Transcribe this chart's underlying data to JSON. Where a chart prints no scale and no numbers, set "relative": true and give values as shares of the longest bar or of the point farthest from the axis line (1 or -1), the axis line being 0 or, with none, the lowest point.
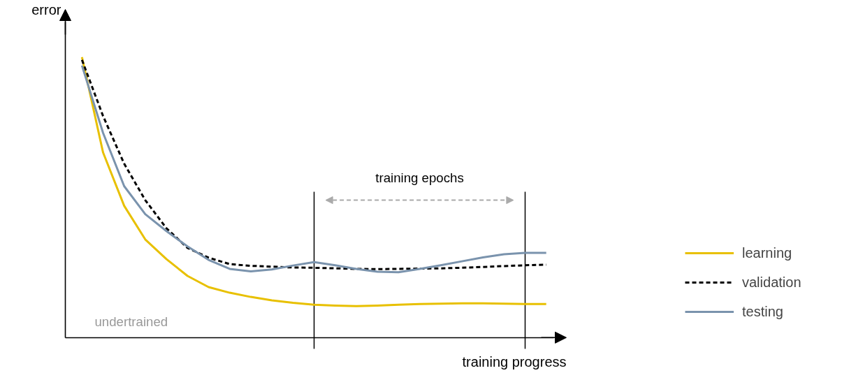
{
  "chart_data": {
    "type": "line",
    "relative": true,
    "xlabel": "training progress",
    "ylabel": "error",
    "tick_labels": false,
    "grid": false,
    "legend": "right",
    "marker": "none",
    "categories": [
      null,
      null,
      null,
      null,
      null,
      null,
      null,
      null,
      null,
      null,
      null,
      null,
      null,
      null,
      null,
      null,
      null,
      null,
      null,
      null,
      null,
      null,
      null
    ],
    "annotations": [
      "undertrained",
      "training epochs"
    ],
    "series": [
      {
        "name": "learning",
        "color": "#e8c000",
        "line_style": "solid",
        "values": [
          1.0,
          0.66,
          0.47,
          0.35,
          0.28,
          0.22,
          0.18,
          0.16,
          0.145,
          0.133,
          0.124,
          0.117,
          0.114,
          0.112,
          0.114,
          0.117,
          0.12,
          0.121,
          0.122,
          0.122,
          0.121,
          0.12,
          0.12
        ]
      },
      {
        "name": "validation",
        "color": "#000000",
        "line_style": "dashed",
        "values": [
          0.99,
          0.79,
          0.62,
          0.49,
          0.39,
          0.32,
          0.285,
          0.262,
          0.256,
          0.253,
          0.25,
          0.249,
          0.247,
          0.245,
          0.244,
          0.245,
          0.246,
          0.247,
          0.249,
          0.252,
          0.255,
          0.258,
          0.26
        ]
      },
      {
        "name": "testing",
        "color": "#7a93ad",
        "line_style": "solid",
        "values": [
          0.97,
          0.73,
          0.54,
          0.44,
          0.38,
          0.325,
          0.277,
          0.245,
          0.236,
          0.243,
          0.257,
          0.269,
          0.258,
          0.245,
          0.235,
          0.233,
          0.245,
          0.258,
          0.272,
          0.286,
          0.297,
          0.302,
          0.302
        ]
      }
    ]
  }
}
